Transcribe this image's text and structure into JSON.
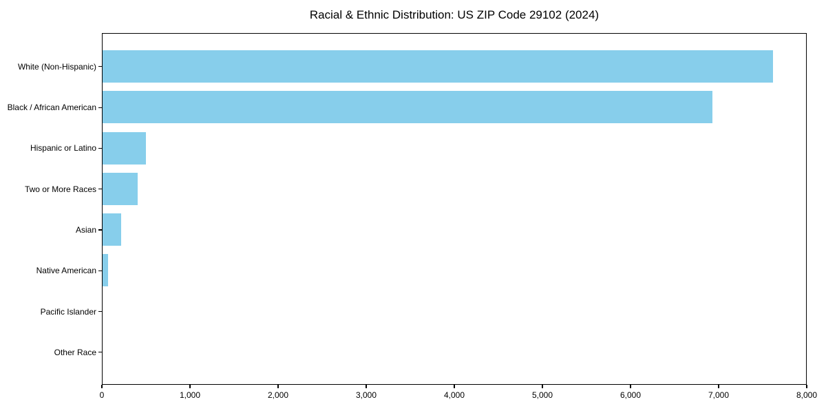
{
  "chart_data": {
    "type": "bar",
    "orientation": "horizontal",
    "title": "Racial & Ethnic Distribution: US ZIP Code 29102 (2024)",
    "categories": [
      "White (Non-Hispanic)",
      "Black / African American",
      "Hispanic or Latino",
      "Two or More Races",
      "Asian",
      "Native American",
      "Pacific Islander",
      "Other Race"
    ],
    "values": [
      7610,
      6920,
      495,
      400,
      210,
      65,
      0,
      0
    ],
    "xlabel": "",
    "ylabel": "",
    "xlim": [
      0,
      8000
    ],
    "x_ticks": [
      {
        "value": 0,
        "label": "0"
      },
      {
        "value": 1000,
        "label": "1,000"
      },
      {
        "value": 2000,
        "label": "2,000"
      },
      {
        "value": 3000,
        "label": "3,000"
      },
      {
        "value": 4000,
        "label": "4,000"
      },
      {
        "value": 5000,
        "label": "5,000"
      },
      {
        "value": 6000,
        "label": "6,000"
      },
      {
        "value": 7000,
        "label": "7,000"
      },
      {
        "value": 8000,
        "label": "8,000"
      }
    ],
    "grid": false,
    "legend": "none",
    "bar_color": "#87CEEB",
    "text_color": "#000000",
    "spine_color": "#000000",
    "background_color": "#FFFFFF"
  }
}
